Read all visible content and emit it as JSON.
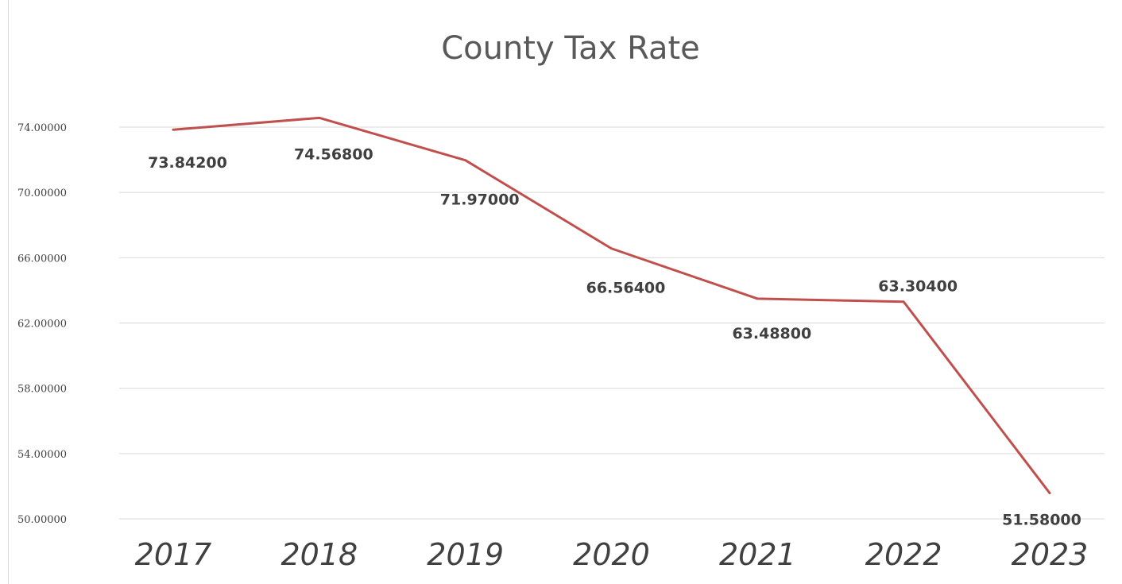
{
  "chart_data": {
    "type": "line",
    "title": "County Tax Rate",
    "xlabel": "",
    "ylabel": "",
    "categories": [
      "2017",
      "2018",
      "2019",
      "2020",
      "2021",
      "2022",
      "2023"
    ],
    "series": [
      {
        "values": [
          73.842,
          74.568,
          71.97,
          66.564,
          63.488,
          63.304,
          51.58
        ],
        "data_labels": [
          "73.84200",
          "74.56800",
          "71.97000",
          "66.56400",
          "63.48800",
          "63.30400",
          "51.58000"
        ],
        "color": "#c0504d"
      }
    ],
    "ylim": [
      50,
      74
    ],
    "yticks": [
      50,
      54,
      58,
      62,
      66,
      70,
      74
    ],
    "ytick_labels": [
      "50.00000",
      "54.00000",
      "58.00000",
      "62.00000",
      "66.00000",
      "70.00000",
      "74.00000"
    ],
    "grid": true,
    "legend": "none"
  }
}
